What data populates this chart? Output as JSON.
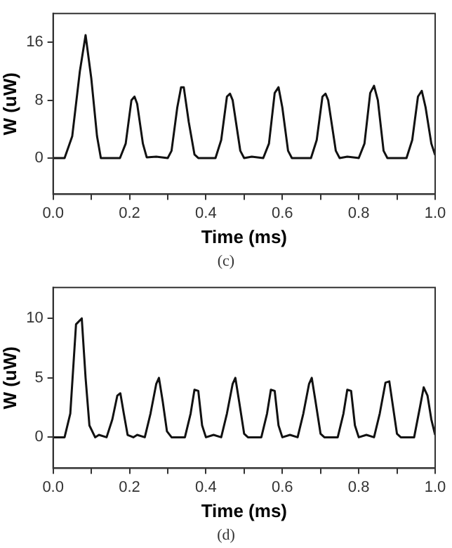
{
  "chart_data": [
    {
      "type": "line",
      "xlabel": "Time (ms)",
      "ylabel": "W (uW)",
      "annotations": [
        "(c)"
      ],
      "xlim": [
        0,
        1
      ],
      "ylim": [
        -5,
        20
      ],
      "xticks": [
        {
          "value": 0,
          "label": "0.0"
        },
        {
          "value": 0.1,
          "label": null
        },
        0.2,
        {
          "value": 0.3,
          "label": null
        },
        0.4,
        {
          "value": 0.5,
          "label": null
        },
        0.6,
        {
          "value": 0.7,
          "label": null
        },
        0.8,
        {
          "value": 0.9,
          "label": null
        },
        {
          "value": 1,
          "label": "1.0"
        }
      ],
      "yticks": [
        0,
        8,
        16
      ],
      "grid": false,
      "legend": false,
      "marker": "none",
      "line_style": "solid",
      "series": [
        {
          "color": "#111111",
          "x": [
            0,
            0.03,
            0.05,
            0.07,
            0.085,
            0.1,
            0.115,
            0.125,
            0.175,
            0.19,
            0.205,
            0.213,
            0.22,
            0.235,
            0.245,
            0.27,
            0.3,
            0.31,
            0.325,
            0.335,
            0.342,
            0.355,
            0.37,
            0.38,
            0.425,
            0.44,
            0.455,
            0.463,
            0.47,
            0.49,
            0.5,
            0.52,
            0.55,
            0.565,
            0.58,
            0.59,
            0.6,
            0.615,
            0.625,
            0.675,
            0.69,
            0.705,
            0.713,
            0.72,
            0.74,
            0.75,
            0.77,
            0.8,
            0.815,
            0.83,
            0.84,
            0.85,
            0.865,
            0.875,
            0.925,
            0.94,
            0.955,
            0.965,
            0.975,
            0.99,
            1.0
          ],
          "values": [
            0,
            0,
            3,
            12,
            17,
            11,
            3,
            0,
            0,
            2,
            8,
            8.5,
            7.5,
            2,
            0.1,
            0.2,
            0,
            1,
            7,
            9.8,
            9.8,
            5,
            0.5,
            0,
            0,
            2.5,
            8.5,
            8.9,
            8,
            1,
            0,
            0.2,
            0,
            2,
            9,
            9.8,
            7,
            1,
            0,
            0,
            2.5,
            8.5,
            8.9,
            8,
            1,
            0,
            0.2,
            0,
            2,
            9,
            10,
            8,
            1,
            0,
            0,
            2.5,
            8.5,
            9.3,
            7,
            2,
            0.4
          ]
        }
      ]
    },
    {
      "type": "line",
      "xlabel": "Time (ms)",
      "ylabel": "W (uW)",
      "annotations": [
        "(d)"
      ],
      "xlim": [
        0,
        1
      ],
      "ylim": [
        -2.6,
        12.6
      ],
      "xticks": [
        {
          "value": 0,
          "label": "0.0"
        },
        {
          "value": 0.1,
          "label": null
        },
        0.2,
        {
          "value": 0.3,
          "label": null
        },
        0.4,
        {
          "value": 0.5,
          "label": null
        },
        0.6,
        {
          "value": 0.7,
          "label": null
        },
        0.8,
        {
          "value": 0.9,
          "label": null
        },
        {
          "value": 1,
          "label": "1.0"
        }
      ],
      "yticks": [
        0,
        5,
        10
      ],
      "grid": false,
      "legend": false,
      "marker": "none",
      "line_style": "solid",
      "series": [
        {
          "color": "#111111",
          "x": [
            0,
            0.03,
            0.045,
            0.06,
            0.075,
            0.085,
            0.095,
            0.11,
            0.12,
            0.14,
            0.155,
            0.168,
            0.176,
            0.185,
            0.195,
            0.21,
            0.22,
            0.24,
            0.255,
            0.27,
            0.277,
            0.287,
            0.298,
            0.31,
            0.345,
            0.36,
            0.37,
            0.38,
            0.39,
            0.4,
            0.42,
            0.44,
            0.455,
            0.47,
            0.477,
            0.487,
            0.5,
            0.51,
            0.545,
            0.56,
            0.57,
            0.58,
            0.59,
            0.6,
            0.62,
            0.64,
            0.655,
            0.67,
            0.677,
            0.687,
            0.7,
            0.71,
            0.745,
            0.76,
            0.77,
            0.78,
            0.79,
            0.8,
            0.82,
            0.84,
            0.855,
            0.87,
            0.88,
            0.89,
            0.9,
            0.91,
            0.945,
            0.96,
            0.97,
            0.98,
            0.99,
            1.0
          ],
          "values": [
            0,
            0,
            2,
            9.5,
            10,
            5,
            1,
            0,
            0.2,
            0,
            1.5,
            3.5,
            3.7,
            2,
            0.2,
            0,
            0.2,
            0,
            2,
            4.5,
            5,
            3,
            0.5,
            0,
            0,
            2,
            4,
            3.9,
            1,
            0,
            0.2,
            0,
            2,
            4.5,
            5,
            3,
            0.3,
            0,
            0,
            2,
            4,
            3.9,
            1,
            0,
            0.2,
            0,
            2,
            4.5,
            5,
            3,
            0.3,
            0,
            0,
            2,
            4,
            3.9,
            1,
            0,
            0.2,
            0,
            2,
            4.6,
            4.7,
            2.5,
            0.3,
            0,
            0,
            2.5,
            4.2,
            3.5,
            1.5,
            0.2
          ]
        }
      ]
    }
  ]
}
